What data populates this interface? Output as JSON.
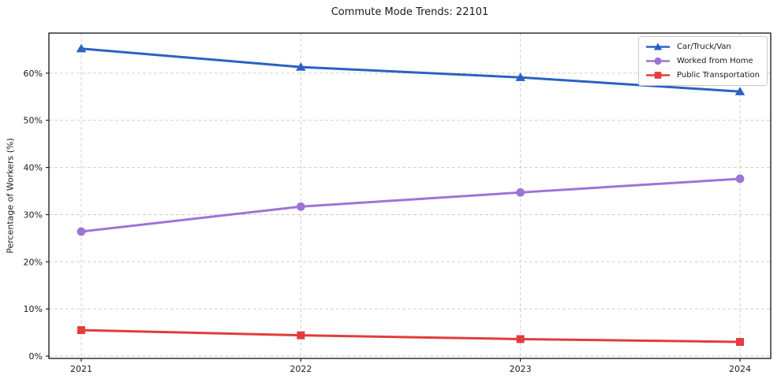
{
  "title": "Commute Mode Trends: 22101",
  "chart_data": {
    "type": "line",
    "title": "Commute Mode Trends: 22101",
    "xlabel": "",
    "ylabel": "Percentage of Workers (%)",
    "x": [
      2021,
      2022,
      2023,
      2024
    ],
    "series": [
      {
        "name": "Car/Truck/Van",
        "values": [
          65.2,
          61.3,
          59.1,
          56.1
        ],
        "color": "#2a62c4",
        "marker": "triangle"
      },
      {
        "name": "Worked from Home",
        "values": [
          26.4,
          31.7,
          34.7,
          37.6
        ],
        "color": "#9d74d6",
        "marker": "circle"
      },
      {
        "name": "Public Transportation",
        "values": [
          5.5,
          4.4,
          3.6,
          3.0
        ],
        "color": "#e23c3c",
        "marker": "square"
      }
    ],
    "yticks": [
      0,
      10,
      20,
      30,
      40,
      50,
      60
    ],
    "ytick_suffix": "%",
    "ylim": [
      -0.5,
      68.5
    ],
    "grid": true,
    "grid_style": "dashed",
    "legend_position": "top-right",
    "axis_color": "#222222",
    "grid_color": "#cfcfcf",
    "tick_label_color": "#1a1a1a"
  }
}
